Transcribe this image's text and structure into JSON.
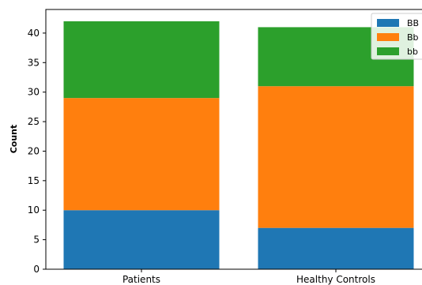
{
  "chart_data": {
    "type": "bar",
    "stacked": true,
    "title": "",
    "xlabel": "",
    "ylabel": "Count",
    "categories": [
      "Patients",
      "Healthy Controls"
    ],
    "series": [
      {
        "name": "BB",
        "values": [
          10,
          7
        ],
        "color": "#1f77b4"
      },
      {
        "name": "Bb",
        "values": [
          19,
          24
        ],
        "color": "#ff7f0e"
      },
      {
        "name": "bb",
        "values": [
          13,
          10
        ],
        "color": "#2ca02c"
      }
    ],
    "ylim": [
      0,
      44
    ],
    "yticks": [
      0,
      5,
      10,
      15,
      20,
      25,
      30,
      35,
      40
    ],
    "grid": false,
    "legend_position": "top-right"
  }
}
